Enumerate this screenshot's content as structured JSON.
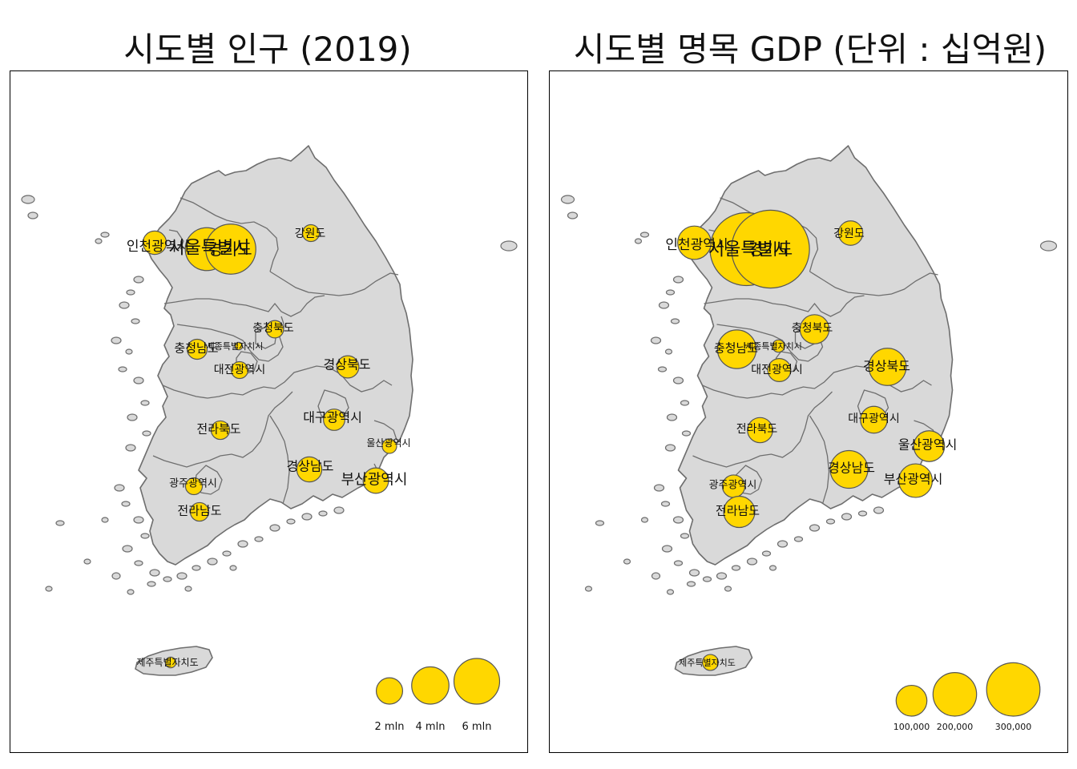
{
  "maps": [
    {
      "title": "시도별 인구 (2019)",
      "legend": [
        {
          "label": "2 mln",
          "value": 2000000
        },
        {
          "label": "4 mln",
          "value": 4000000
        },
        {
          "label": "6 mln",
          "value": 6000000
        }
      ],
      "symbol_color": "#FFD700",
      "regions": [
        {
          "name": "서울특별시",
          "size": 9.7
        },
        {
          "name": "경기도",
          "size": 13.2
        },
        {
          "name": "인천광역시",
          "size": 2.9
        },
        {
          "name": "강원도",
          "size": 1.5
        },
        {
          "name": "충청북도",
          "size": 1.6
        },
        {
          "name": "세종특별자치시",
          "size": 0.3
        },
        {
          "name": "충청남도",
          "size": 2.1
        },
        {
          "name": "대전광역시",
          "size": 1.5
        },
        {
          "name": "경상북도",
          "size": 2.6
        },
        {
          "name": "대구광역시",
          "size": 2.4
        },
        {
          "name": "전라북도",
          "size": 1.8
        },
        {
          "name": "울산광역시",
          "size": 1.1
        },
        {
          "name": "경상남도",
          "size": 3.3
        },
        {
          "name": "부산광역시",
          "size": 3.4
        },
        {
          "name": "광주광역시",
          "size": 1.5
        },
        {
          "name": "전라남도",
          "size": 1.8
        },
        {
          "name": "제주특별자치도",
          "size": 0.6
        }
      ]
    },
    {
      "title": "시도별 명목 GDP (단위 : 십억원)",
      "legend": [
        {
          "label": "100,000",
          "value": 100000
        },
        {
          "label": "200,000",
          "value": 200000
        },
        {
          "label": "300,000",
          "value": 300000
        }
      ],
      "symbol_color": "#FFD700",
      "regions": [
        {
          "name": "서울특별시",
          "size": 420
        },
        {
          "name": "경기도",
          "size": 480
        },
        {
          "name": "인천광역시",
          "size": 88
        },
        {
          "name": "강원도",
          "size": 47
        },
        {
          "name": "충청북도",
          "size": 67
        },
        {
          "name": "세종특별자치시",
          "size": 12
        },
        {
          "name": "충청남도",
          "size": 118
        },
        {
          "name": "대전광역시",
          "size": 42
        },
        {
          "name": "경상북도",
          "size": 110
        },
        {
          "name": "대구광역시",
          "size": 57
        },
        {
          "name": "전라북도",
          "size": 50
        },
        {
          "name": "울산광역시",
          "size": 75
        },
        {
          "name": "경상남도",
          "size": 112
        },
        {
          "name": "부산광역시",
          "size": 89
        },
        {
          "name": "광주광역시",
          "size": 40
        },
        {
          "name": "전라남도",
          "size": 77
        },
        {
          "name": "제주특별자치도",
          "size": 20
        }
      ]
    }
  ]
}
